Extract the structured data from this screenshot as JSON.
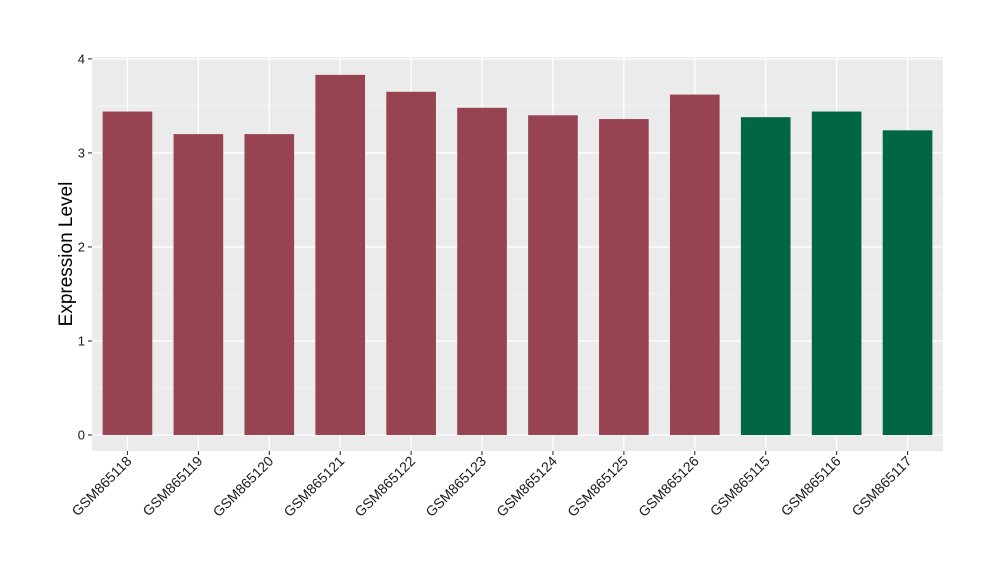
{
  "chart_data": {
    "type": "bar",
    "ylabel": "Expression Level",
    "xlabel": "",
    "title": "",
    "ylim": [
      -0.17,
      4.02
    ],
    "yticks": [
      0,
      1,
      2,
      3,
      4
    ],
    "grid": true,
    "legend": "none",
    "categories": [
      "GSM865118",
      "GSM865119",
      "GSM865120",
      "GSM865121",
      "GSM865122",
      "GSM865123",
      "GSM865124",
      "GSM865125",
      "GSM865126",
      "GSM865115",
      "GSM865116",
      "GSM865117"
    ],
    "values": [
      3.44,
      3.2,
      3.2,
      3.83,
      3.65,
      3.48,
      3.4,
      3.36,
      3.62,
      3.38,
      3.44,
      3.24
    ],
    "groups": [
      "a",
      "a",
      "a",
      "a",
      "a",
      "a",
      "a",
      "a",
      "a",
      "b",
      "b",
      "b"
    ],
    "colors": {
      "a": "#984351",
      "b": "#006644"
    }
  }
}
